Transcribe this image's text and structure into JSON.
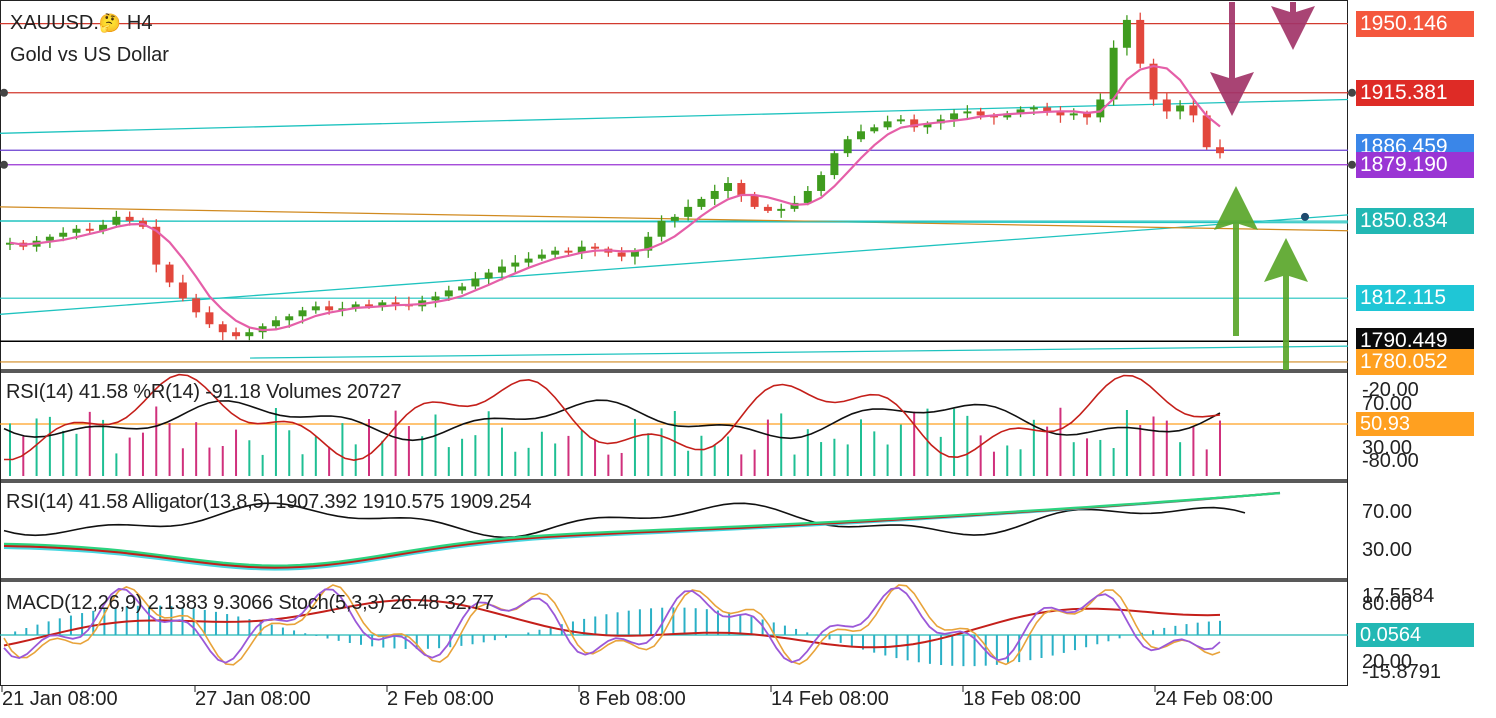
{
  "header": {
    "symbol": "XAUUSD.",
    "emoji": "🤔",
    "timeframe": "H4",
    "description": "Gold vs US Dollar"
  },
  "colors": {
    "bull": "#3f9b1e",
    "bear": "#e2473c",
    "ma": "#e55fa8",
    "hline_red": "#d23a2e",
    "hline_purple": "#9a35d4",
    "trend_teal": "#1fc3bf",
    "trend_orange": "#d08a20",
    "arrow_down": "#a23468",
    "arrow_up": "#5aa62a"
  },
  "icons": [
    "thinking-face-icon",
    "down-arrow-icon",
    "up-arrow-icon"
  ],
  "price_labels": [
    {
      "text": "1950.146",
      "bg": "#f4573d",
      "fg": "#ffffff",
      "price": 1950.146
    },
    {
      "text": "1915.381",
      "bg": "#de2b26",
      "fg": "#ffffff",
      "price": 1915.381
    },
    {
      "text": "1886.459",
      "bg": "#3a86e8",
      "fg": "#ffffff",
      "price": 1886.459
    },
    {
      "text": "1879.190",
      "bg": "#9a35d4",
      "fg": "#ffffff",
      "price": 1879.19
    },
    {
      "text": "1850.834",
      "bg": "#22b8b4",
      "fg": "#ffffff",
      "price": 1850.834
    },
    {
      "text": "1812.115",
      "bg": "#1fc6d6",
      "fg": "#ffffff",
      "price": 1812.115
    },
    {
      "text": "1790.449",
      "bg": "#0a0a0a",
      "fg": "#ffffff",
      "price": 1790.449
    },
    {
      "text": "1780.052",
      "bg": "#ffa020",
      "fg": "#ffffff",
      "price": 1780.052
    }
  ],
  "panels": {
    "rsi_wpr_vol": {
      "title": "RSI(14) 41.58 %R(14) -91.18 Volumes 20727",
      "axis_labels": [
        "-20.00",
        "70.00",
        "30.00",
        "-80.00"
      ],
      "level_tag": "50.93"
    },
    "rsi_alligator": {
      "title": "RSI(14) 41.58 Alligator(13,8,5) 1907.392 1910.575 1909.254",
      "axis_labels": [
        "70.00",
        "30.00"
      ]
    },
    "macd_stoch": {
      "title": "MACD(12,26,9) 2.1383 9.3066 Stoch(5,3,3) 26.48 32.77",
      "axis_labels": [
        "17.5584",
        "80.00",
        "20.00",
        "-15.8791"
      ],
      "level_tag": "0.0564"
    }
  },
  "time_axis": [
    "21 Jan 08:00",
    "27 Jan 08:00",
    "2 Feb 08:00",
    "8 Feb 08:00",
    "14 Feb 08:00",
    "18 Feb 08:00",
    "24 Feb 08:00"
  ],
  "chart_data": {
    "type": "candlestick",
    "symbol": "XAUUSD.",
    "timeframe": "H4",
    "ylim": [
      1776,
      1960
    ],
    "x": [
      "21 Jan 08:00",
      "27 Jan 08:00",
      "2 Feb 08:00",
      "8 Feb 08:00",
      "14 Feb 08:00",
      "18 Feb 08:00",
      "24 Feb 08:00"
    ],
    "close_path": [
      1840,
      1838,
      1841,
      1843,
      1845,
      1847,
      1846,
      1849,
      1853,
      1851,
      1848,
      1829,
      1820,
      1812,
      1805,
      1799,
      1795,
      1793,
      1795,
      1798,
      1801,
      1803,
      1806,
      1808,
      1806,
      1807,
      1809,
      1808,
      1810,
      1809,
      1808,
      1811,
      1813,
      1816,
      1818,
      1822,
      1825,
      1828,
      1830,
      1832,
      1834,
      1836,
      1835,
      1838,
      1837,
      1835,
      1833,
      1836,
      1843,
      1851,
      1853,
      1858,
      1862,
      1866,
      1870,
      1864,
      1858,
      1856,
      1857,
      1860,
      1866,
      1874,
      1885,
      1892,
      1896,
      1898,
      1901,
      1902,
      1898,
      1900,
      1902,
      1905,
      1906,
      1904,
      1903,
      1905,
      1907,
      1908,
      1906,
      1904,
      1905,
      1903,
      1912,
      1938,
      1952,
      1930,
      1912,
      1906,
      1909,
      1904,
      1888,
      1885
    ],
    "horizontal_levels": [
      1950.146,
      1915.381,
      1886.459,
      1879.19,
      1850.834,
      1812.115,
      1790.449,
      1780.052
    ],
    "annotations": [
      {
        "type": "arrow-down",
        "at_price": 1960
      },
      {
        "type": "arrow-down",
        "at_price": 1918
      },
      {
        "type": "arrow-up",
        "at_price": 1875
      },
      {
        "type": "arrow-up",
        "at_price": 1848
      }
    ],
    "indicators": {
      "rsi14": 41.58,
      "williams_r14": -91.18,
      "volume": 20727,
      "alligator": [
        1907.392,
        1910.575,
        1909.254
      ],
      "macd": [
        2.1383,
        9.3066
      ],
      "stoch": [
        26.48,
        32.77
      ]
    }
  }
}
